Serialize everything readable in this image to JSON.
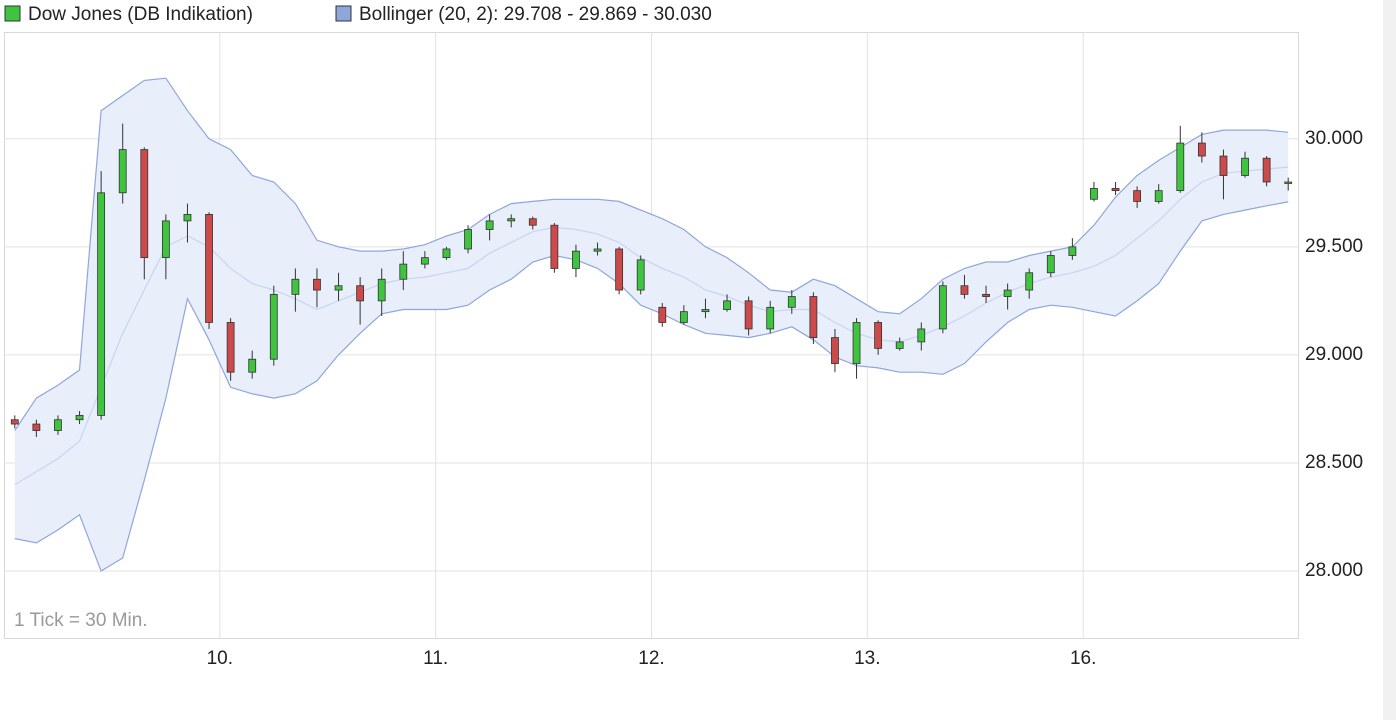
{
  "chart_data": {
    "type": "candlestick",
    "annotation": "1 Tick = 30 Min.",
    "categories": [
      null,
      null,
      null,
      null,
      null,
      null,
      null,
      null,
      null,
      null,
      "10.",
      null,
      null,
      null,
      null,
      null,
      null,
      null,
      null,
      null,
      "11.",
      null,
      null,
      null,
      null,
      null,
      null,
      null,
      null,
      null,
      "12.",
      null,
      null,
      null,
      null,
      null,
      null,
      null,
      null,
      null,
      "13.",
      null,
      null,
      null,
      null,
      null,
      null,
      null,
      null,
      null,
      "16.",
      null,
      null,
      null,
      null,
      null,
      null,
      null,
      null,
      null
    ],
    "ylim": [
      27690,
      30494
    ],
    "yticks": [
      {
        "value": 28000,
        "label": "28.000"
      },
      {
        "value": 28500,
        "label": "28.500"
      },
      {
        "value": 29000,
        "label": "29.000"
      },
      {
        "value": 29500,
        "label": "29.500"
      },
      {
        "value": 30000,
        "label": "30.000"
      }
    ],
    "grid": true,
    "series": [
      {
        "name": "Dow Jones (DB Indikation)",
        "color": "#3ec43e",
        "down_color": "#cd4a4a",
        "open": [
          28700,
          28680,
          28650,
          28700,
          28720,
          29750,
          29950,
          29450,
          29620,
          29650,
          29150,
          28920,
          28980,
          29280,
          29350,
          29300,
          29320,
          29250,
          29350,
          29420,
          29450,
          29490,
          29580,
          29620,
          29630,
          29600,
          29400,
          29480,
          29490,
          29300,
          29220,
          29150,
          29200,
          29210,
          29250,
          29120,
          29220,
          29270,
          29080,
          28960,
          29150,
          29030,
          29060,
          29120,
          29320,
          29280,
          29270,
          29300,
          29380,
          29460,
          29720,
          29770,
          29760,
          29710,
          29760,
          29980,
          29920,
          29830,
          29910,
          29800
        ],
        "high": [
          28720,
          28700,
          28720,
          28740,
          29850,
          30070,
          29960,
          29650,
          29700,
          29660,
          29170,
          29020,
          29320,
          29400,
          29400,
          29380,
          29360,
          29400,
          29480,
          29480,
          29500,
          29600,
          29650,
          29650,
          29640,
          29610,
          29510,
          29520,
          29500,
          29460,
          29240,
          29230,
          29260,
          29280,
          29270,
          29250,
          29300,
          29290,
          29120,
          29170,
          29160,
          29080,
          29150,
          29340,
          29370,
          29320,
          29330,
          29400,
          29480,
          29540,
          29800,
          29800,
          29780,
          29790,
          30060,
          30030,
          29950,
          29940,
          29920,
          29820
        ],
        "low": [
          28660,
          28620,
          28630,
          28680,
          28700,
          29700,
          29350,
          29350,
          29520,
          29120,
          28880,
          28890,
          28950,
          29200,
          29220,
          29250,
          29140,
          29180,
          29300,
          29400,
          29440,
          29470,
          29530,
          29590,
          29580,
          29380,
          29360,
          29460,
          29280,
          29280,
          29130,
          29140,
          29170,
          29200,
          29090,
          29100,
          29190,
          29050,
          28920,
          28890,
          29000,
          29020,
          29020,
          29100,
          29260,
          29240,
          29210,
          29260,
          29360,
          29440,
          29710,
          29740,
          29680,
          29700,
          29750,
          29890,
          29720,
          29820,
          29780,
          29760
        ],
        "close": [
          28680,
          28650,
          28700,
          28720,
          29750,
          29950,
          29450,
          29620,
          29650,
          29150,
          28920,
          28980,
          29280,
          29350,
          29300,
          29320,
          29250,
          29350,
          29420,
          29450,
          29490,
          29580,
          29620,
          29630,
          29600,
          29400,
          29480,
          29490,
          29300,
          29440,
          29150,
          29200,
          29210,
          29250,
          29120,
          29220,
          29270,
          29080,
          28960,
          29150,
          29030,
          29060,
          29120,
          29320,
          29280,
          29270,
          29300,
          29380,
          29460,
          29500,
          29770,
          29760,
          29710,
          29760,
          29980,
          29920,
          29830,
          29910,
          29800,
          29800
        ]
      },
      {
        "name": "Bollinger (20, 2): 29.708 - 29.869 - 30.030",
        "color": "#8fa6dc",
        "fill": "#e9eefb",
        "upper": [
          28650,
          28800,
          28860,
          28930,
          30130,
          30200,
          30270,
          30280,
          30130,
          30000,
          29950,
          29830,
          29800,
          29700,
          29530,
          29500,
          29480,
          29480,
          29490,
          29510,
          29550,
          29580,
          29650,
          29700,
          29710,
          29720,
          29720,
          29720,
          29710,
          29670,
          29630,
          29580,
          29500,
          29450,
          29380,
          29300,
          29290,
          29350,
          29320,
          29260,
          29200,
          29190,
          29260,
          29350,
          29400,
          29430,
          29430,
          29460,
          29480,
          29500,
          29600,
          29730,
          29830,
          29900,
          29960,
          30020,
          30040,
          30040,
          30040,
          30030
        ],
        "middle": [
          28400,
          28460,
          28520,
          28600,
          28850,
          29100,
          29300,
          29500,
          29550,
          29500,
          29400,
          29330,
          29300,
          29260,
          29210,
          29250,
          29290,
          29330,
          29350,
          29360,
          29380,
          29400,
          29470,
          29520,
          29570,
          29590,
          29580,
          29560,
          29520,
          29450,
          29400,
          29360,
          29300,
          29270,
          29230,
          29200,
          29210,
          29210,
          29150,
          29100,
          29070,
          29060,
          29090,
          29130,
          29180,
          29240,
          29290,
          29330,
          29360,
          29380,
          29410,
          29460,
          29540,
          29620,
          29720,
          29800,
          29840,
          29850,
          29860,
          29869
        ],
        "lower": [
          28150,
          28130,
          28190,
          28260,
          28000,
          28060,
          28420,
          28800,
          29260,
          29070,
          28850,
          28820,
          28800,
          28820,
          28880,
          29000,
          29100,
          29190,
          29210,
          29210,
          29210,
          29230,
          29300,
          29350,
          29430,
          29460,
          29440,
          29400,
          29330,
          29230,
          29190,
          29140,
          29100,
          29090,
          29080,
          29100,
          29130,
          29070,
          28990,
          28950,
          28940,
          28920,
          28920,
          28910,
          28960,
          29060,
          29150,
          29210,
          29230,
          29220,
          29200,
          29180,
          29250,
          29330,
          29480,
          29620,
          29650,
          29670,
          29690,
          29708
        ]
      }
    ]
  }
}
